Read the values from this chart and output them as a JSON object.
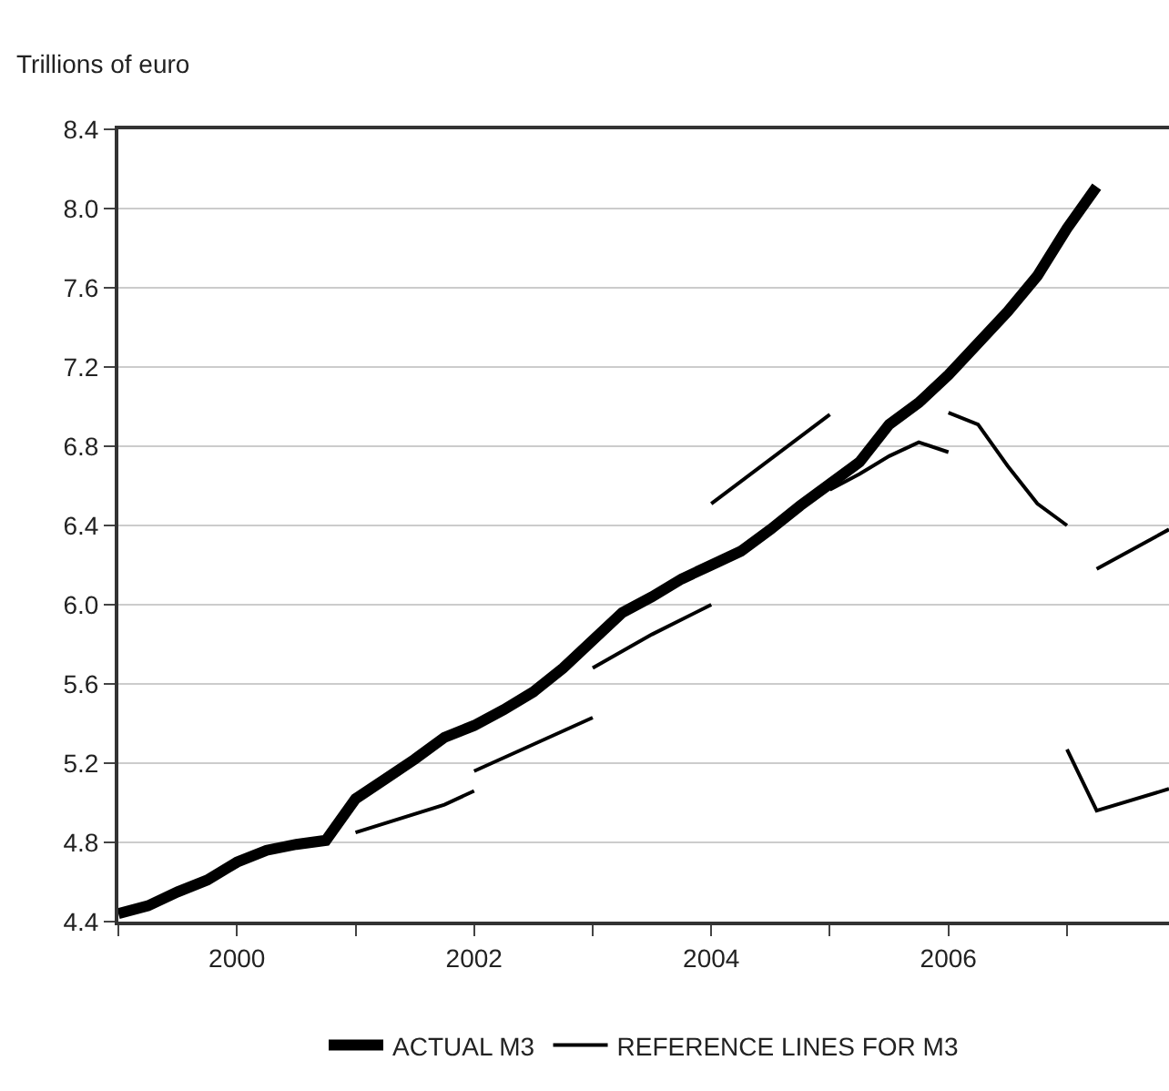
{
  "chart_data": {
    "type": "line",
    "ylabel": "Trillions of euro",
    "xlim": [
      1999,
      2007.86
    ],
    "ylim": [
      4.4,
      8.4
    ],
    "xticks": [
      {
        "value": 1999,
        "label": null
      },
      2000,
      {
        "value": 2001,
        "label": null
      },
      2002,
      {
        "value": 2003,
        "label": null
      },
      2004,
      {
        "value": 2005,
        "label": null
      },
      2006,
      {
        "value": 2007,
        "label": null
      }
    ],
    "yticks": [
      4.4,
      4.8,
      5.2,
      5.6,
      {
        "value": 6,
        "label": "6.0"
      },
      6.4,
      6.8,
      7.2,
      7.6,
      {
        "value": 8,
        "label": "8.0"
      },
      8.4
    ],
    "grid": "y",
    "legend": "bottom",
    "line_style": "solid",
    "marker": "none",
    "series": [
      {
        "name": "ACTUAL M3",
        "color": "#000000",
        "x": [
          1999.0,
          1999.25,
          1999.5,
          1999.75,
          2000.0,
          2000.25,
          2000.5,
          2000.75,
          2001.0,
          2001.25,
          2001.5,
          2001.75,
          2002.0,
          2002.25,
          2002.5,
          2002.75,
          2003.0,
          2003.25,
          2003.5,
          2003.75,
          2004.0,
          2004.25,
          2004.5,
          2004.75,
          2005.0,
          2005.25,
          2005.5,
          2005.75,
          2006.0,
          2006.25,
          2006.5,
          2006.75,
          2007.0,
          2007.25
        ],
        "values": [
          4.44,
          4.48,
          4.55,
          4.61,
          4.7,
          4.76,
          4.79,
          4.81,
          5.02,
          5.12,
          5.22,
          5.33,
          5.39,
          5.47,
          5.56,
          5.68,
          5.82,
          5.96,
          6.04,
          6.13,
          6.2,
          6.27,
          6.38,
          6.5,
          6.61,
          6.72,
          6.91,
          7.02,
          7.16,
          7.32,
          7.48,
          7.66,
          7.9,
          8.11
        ]
      },
      {
        "name": "REFERENCE LINES FOR M3",
        "color": "#000000",
        "x": [
          2001.0,
          2001.75,
          2002.0,
          null,
          2002.0,
          2003.0,
          null,
          2003.0,
          2003.5,
          2004.0,
          null,
          2004.0,
          2005.0,
          null,
          2005.0,
          2005.25,
          2005.5,
          2005.75,
          2006.0,
          null,
          2006.0,
          2006.25,
          2006.5,
          2006.75,
          2007.0,
          null,
          2007.25,
          2007.86,
          null,
          2007.0,
          2007.25,
          2007.86
        ],
        "values": [
          4.85,
          4.99,
          5.06,
          null,
          5.16,
          5.43,
          null,
          5.68,
          5.85,
          6.0,
          null,
          6.51,
          6.96,
          null,
          6.58,
          6.66,
          6.75,
          6.82,
          6.77,
          null,
          6.97,
          6.91,
          6.7,
          6.51,
          6.4,
          null,
          6.18,
          6.38,
          null,
          5.27,
          4.96,
          5.07
        ]
      }
    ]
  }
}
